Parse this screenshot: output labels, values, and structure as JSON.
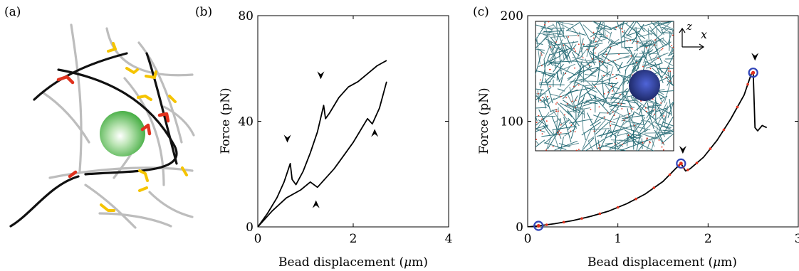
{
  "panels": {
    "a": {
      "label": "(a)"
    },
    "b": {
      "label": "(b)"
    },
    "c": {
      "label": "(c)",
      "inset_axes": {
        "z": "z",
        "x": "x"
      }
    }
  },
  "chart_data": [
    {
      "panel": "b",
      "type": "line",
      "xlabel": "Bead displacement (μm)",
      "ylabel": "Force (pN)",
      "xlim": [
        0,
        4
      ],
      "ylim": [
        0,
        80
      ],
      "xticks": [
        "0",
        "2",
        "4"
      ],
      "yticks": [
        "0",
        "40",
        "80"
      ],
      "series": [
        {
          "x": [
            0,
            0.2,
            0.4,
            0.55,
            0.68,
            0.72,
            0.8,
            0.95,
            1.1,
            1.25,
            1.38,
            1.42,
            1.5,
            1.7,
            1.9,
            2.1,
            2.3,
            2.5,
            2.7
          ],
          "y": [
            0,
            5,
            11,
            17,
            24,
            18,
            16,
            21,
            28,
            36,
            46,
            41,
            43,
            49,
            53,
            55,
            58,
            61,
            63
          ]
        },
        {
          "x": [
            0,
            0.3,
            0.6,
            0.9,
            1.1,
            1.25,
            1.4,
            1.6,
            1.8,
            2.0,
            2.2,
            2.3,
            2.4,
            2.55,
            2.7
          ],
          "y": [
            0,
            6,
            11,
            14,
            17,
            15,
            18,
            22,
            27,
            32,
            38,
            41,
            39,
            45,
            55
          ]
        }
      ],
      "annotations": [
        {
          "shape": "arrowhead",
          "x": 0.62,
          "y": 33
        },
        {
          "shape": "arrowhead",
          "x": 1.32,
          "y": 57
        },
        {
          "shape": "arrowhead",
          "x": 1.22,
          "y": 9
        },
        {
          "shape": "arrowhead",
          "x": 2.45,
          "y": 36
        }
      ]
    },
    {
      "panel": "c",
      "type": "line",
      "xlabel": "Bead displacement (μm)",
      "ylabel": "Force (pN)",
      "xlim": [
        0,
        3
      ],
      "ylim": [
        0,
        200
      ],
      "xticks": [
        "0",
        "1",
        "2",
        "3"
      ],
      "yticks": [
        "0",
        "100",
        "200"
      ],
      "series": [
        {
          "x": [
            0,
            0.12,
            0.3,
            0.5,
            0.7,
            0.9,
            1.1,
            1.3,
            1.5,
            1.65,
            1.7,
            1.75,
            1.8,
            1.95,
            2.1,
            2.25,
            2.4,
            2.48,
            2.5,
            2.52,
            2.55,
            2.6,
            2.65
          ],
          "y": [
            0,
            1,
            3,
            6,
            10,
            15,
            22,
            31,
            43,
            56,
            60,
            53,
            55,
            66,
            82,
            102,
            125,
            145,
            146,
            94,
            91,
            96,
            94
          ]
        }
      ],
      "markers": [
        {
          "x": 0.12,
          "y": 1,
          "color": "#3044b8"
        },
        {
          "x": 1.7,
          "y": 60,
          "color": "#3044b8"
        },
        {
          "x": 2.5,
          "y": 146,
          "color": "#3044b8"
        }
      ],
      "annotations": [
        {
          "shape": "arrowhead",
          "x": 1.72,
          "y": 72
        },
        {
          "shape": "arrowhead",
          "x": 2.52,
          "y": 160
        }
      ]
    }
  ],
  "colors": {
    "bead_green": "#3aa838",
    "crosslink_yellow": "#f5c400",
    "crosslink_red": "#e0321e",
    "fiber_grey": "#bdbdbd",
    "fiber_black": "#111111",
    "marker_blue": "#3044b8",
    "network_teal": "#2a6e78",
    "inset_bead": "#26358a"
  }
}
